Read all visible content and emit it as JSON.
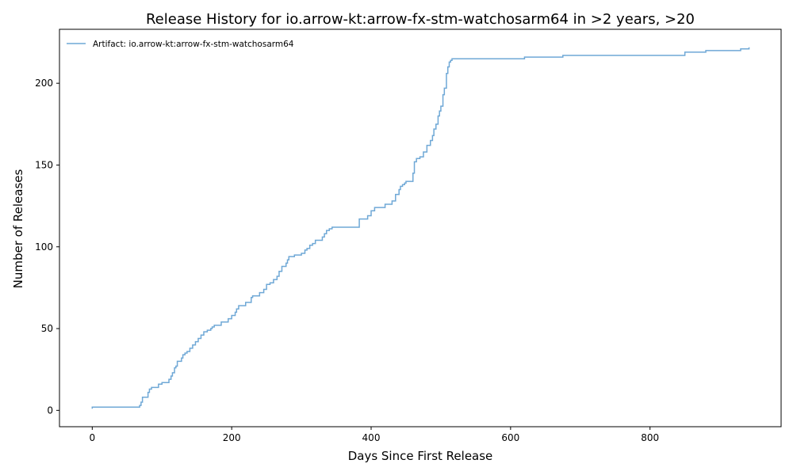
{
  "chart_data": {
    "type": "line",
    "title": "Release History for io.arrow-kt:arrow-fx-stm-watchosarm64 in >2 years, >20",
    "xlabel": "Days Since First Release",
    "ylabel": "Number of Releases",
    "xlim": [
      -47,
      988
    ],
    "ylim": [
      -10,
      233
    ],
    "xticks": [
      0,
      200,
      400,
      600,
      800
    ],
    "yticks": [
      0,
      50,
      100,
      150,
      200
    ],
    "grid": false,
    "legend_position": "top-left",
    "step": true,
    "series": [
      {
        "name": "Artifact: io.arrow-kt:arrow-fx-stm-watchosarm64",
        "color": "#6fa8d6",
        "x": [
          0,
          0,
          66,
          68,
          70,
          72,
          80,
          82,
          85,
          95,
          100,
          110,
          113,
          115,
          118,
          120,
          122,
          128,
          130,
          133,
          136,
          140,
          144,
          148,
          152,
          156,
          160,
          165,
          170,
          172,
          175,
          185,
          195,
          200,
          205,
          207,
          210,
          220,
          228,
          230,
          240,
          246,
          250,
          255,
          260,
          265,
          268,
          272,
          278,
          280,
          282,
          290,
          300,
          305,
          308,
          312,
          316,
          320,
          330,
          333,
          336,
          340,
          344,
          350,
          383,
          395,
          400,
          405,
          420,
          430,
          435,
          440,
          442,
          445,
          448,
          450,
          460,
          462,
          465,
          470,
          475,
          480,
          485,
          488,
          490,
          493,
          496,
          498,
          500,
          503,
          505,
          508,
          510,
          512,
          514,
          516,
          518,
          520,
          540,
          620,
          675,
          700,
          848,
          850,
          878,
          880,
          926,
          930,
          942
        ],
        "y": [
          1,
          2,
          2,
          3,
          5,
          8,
          11,
          13,
          14,
          16,
          17,
          19,
          21,
          23,
          26,
          27,
          30,
          32,
          34,
          35,
          36,
          38,
          40,
          42,
          44,
          46,
          48,
          49,
          50,
          51,
          52,
          54,
          56,
          58,
          60,
          62,
          64,
          66,
          69,
          70,
          72,
          74,
          77,
          78,
          80,
          82,
          85,
          88,
          90,
          92,
          94,
          95,
          96,
          98,
          99,
          101,
          102,
          104,
          106,
          108,
          110,
          111,
          112,
          112,
          117,
          119,
          122,
          124,
          126,
          128,
          132,
          135,
          137,
          138,
          139,
          140,
          145,
          152,
          154,
          155,
          158,
          162,
          165,
          168,
          172,
          175,
          180,
          183,
          186,
          193,
          197,
          206,
          210,
          213,
          214,
          215,
          215,
          215,
          215,
          216,
          217,
          217,
          217,
          219,
          219,
          220,
          220,
          221,
          222
        ]
      }
    ]
  }
}
